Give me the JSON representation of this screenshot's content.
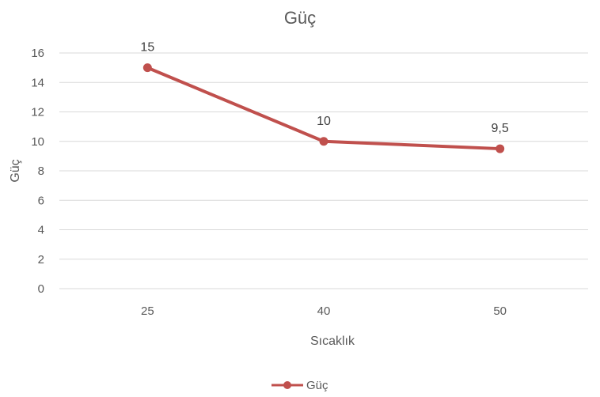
{
  "chart_data": {
    "type": "line",
    "title": "Güç",
    "xlabel": "Sıcaklık",
    "ylabel": "Güç",
    "categories": [
      "25",
      "40",
      "50"
    ],
    "series": [
      {
        "name": "Güç",
        "values": [
          15,
          10,
          9.5
        ],
        "labels": [
          "15",
          "10",
          "9,5"
        ],
        "color": "#c0504d"
      }
    ],
    "ylim": [
      0,
      16
    ],
    "yticks": [
      "0",
      "2",
      "4",
      "6",
      "8",
      "10",
      "12",
      "14",
      "16"
    ],
    "grid": true,
    "legend": "bottom",
    "colors": {
      "grid": "#d9d9d9",
      "text": "#595959"
    }
  }
}
